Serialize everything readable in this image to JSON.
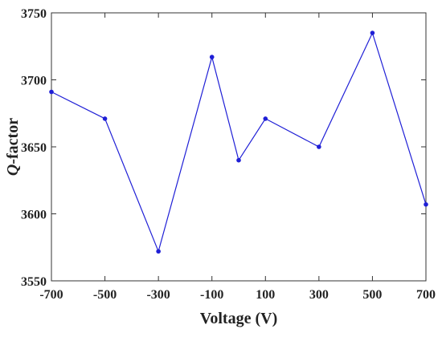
{
  "chart_data": {
    "type": "line",
    "title": "",
    "xlabel": "Voltage (V)",
    "ylabel_italic": "Q",
    "ylabel_rest": "-factor",
    "xlim": [
      -700,
      700
    ],
    "ylim": [
      3550,
      3750
    ],
    "xticks": [
      -700,
      -500,
      -300,
      -100,
      100,
      300,
      500,
      700
    ],
    "xtick_labels": [
      "-700",
      "-500",
      "-300",
      "-100",
      "100",
      "300",
      "500",
      "700"
    ],
    "yticks": [
      3550,
      3600,
      3650,
      3700,
      3750
    ],
    "ytick_labels": [
      "3550",
      "3600",
      "3650",
      "3700",
      "3750"
    ],
    "grid": false,
    "legend": "none",
    "series": [
      {
        "color": "#1f1fd6",
        "marker": "circle",
        "x": [
          -700,
          -500,
          -300,
          -100,
          0,
          100,
          300,
          500,
          700
        ],
        "y": [
          3691,
          3671,
          3572,
          3717,
          3640,
          3671,
          3650,
          3735,
          3607
        ]
      }
    ]
  }
}
